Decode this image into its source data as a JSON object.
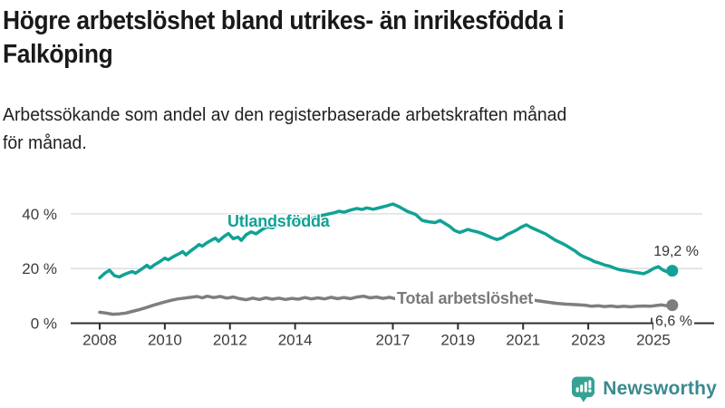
{
  "header": {
    "title_lines": [
      "Högre arbetslöshet bland utrikes- än inrikesfödda i",
      "Falköping"
    ],
    "subtitle_lines": [
      "Arbetssökande som andel av den registerbaserade arbetskraften månad",
      "för månad."
    ]
  },
  "chart_data": {
    "type": "line",
    "title": "Högre arbetslöshet bland utrikes- än inrikesfödda i Falköping",
    "subtitle": "Arbetssökande som andel av den registerbaserade arbetskraften månad för månad.",
    "xlabel": "",
    "ylabel": "",
    "grid": "horizontal",
    "legend_position": "inline-labels",
    "ylim": [
      0,
      46
    ],
    "x_range_years": [
      2007.1,
      2026.8
    ],
    "y_ticks": [
      {
        "value": 0,
        "label": "0 %"
      },
      {
        "value": 20,
        "label": "20 %"
      },
      {
        "value": 40,
        "label": "40 %"
      }
    ],
    "x_ticks": [
      {
        "year": 2008,
        "label": "2008"
      },
      {
        "year": 2010,
        "label": "2010"
      },
      {
        "year": 2012,
        "label": "2012"
      },
      {
        "year": 2014,
        "label": "2014"
      },
      {
        "year": 2017,
        "label": "2017"
      },
      {
        "year": 2019,
        "label": "2019"
      },
      {
        "year": 2021,
        "label": "2021"
      },
      {
        "year": 2023,
        "label": "2023"
      },
      {
        "year": 2025,
        "label": "2025"
      }
    ],
    "series": [
      {
        "id": "utlandsfodda",
        "name": "Utlandsfödda",
        "color": "#10a295",
        "end_value": 19.2,
        "end_label": "19,2 %",
        "points": [
          [
            2008.0,
            16.6
          ],
          [
            2008.15,
            18.2
          ],
          [
            2008.3,
            19.4
          ],
          [
            2008.45,
            17.4
          ],
          [
            2008.6,
            16.9
          ],
          [
            2008.75,
            17.8
          ],
          [
            2008.9,
            18.5
          ],
          [
            2009.0,
            18.9
          ],
          [
            2009.1,
            18.3
          ],
          [
            2009.3,
            19.9
          ],
          [
            2009.45,
            21.2
          ],
          [
            2009.55,
            20.2
          ],
          [
            2009.7,
            21.5
          ],
          [
            2009.85,
            22.6
          ],
          [
            2010.0,
            23.8
          ],
          [
            2010.1,
            23.2
          ],
          [
            2010.3,
            24.6
          ],
          [
            2010.45,
            25.5
          ],
          [
            2010.55,
            26.2
          ],
          [
            2010.65,
            25.0
          ],
          [
            2010.8,
            26.5
          ],
          [
            2010.95,
            27.8
          ],
          [
            2011.05,
            28.8
          ],
          [
            2011.15,
            28.2
          ],
          [
            2011.3,
            29.5
          ],
          [
            2011.45,
            30.5
          ],
          [
            2011.55,
            31.1
          ],
          [
            2011.65,
            30.0
          ],
          [
            2011.8,
            31.6
          ],
          [
            2011.95,
            32.8
          ],
          [
            2012.1,
            30.9
          ],
          [
            2012.25,
            31.5
          ],
          [
            2012.35,
            30.3
          ],
          [
            2012.5,
            32.4
          ],
          [
            2012.65,
            33.4
          ],
          [
            2012.8,
            32.7
          ],
          [
            2013.0,
            34.4
          ],
          [
            2013.15,
            35.3
          ],
          [
            2013.3,
            34.9
          ],
          [
            2013.5,
            36.1
          ],
          [
            2013.65,
            36.6
          ],
          [
            2013.8,
            36.1
          ],
          [
            2014.0,
            37.3
          ],
          [
            2014.2,
            38.1
          ],
          [
            2014.4,
            37.7
          ],
          [
            2014.6,
            38.7
          ],
          [
            2014.8,
            39.3
          ],
          [
            2015.0,
            39.9
          ],
          [
            2015.2,
            40.4
          ],
          [
            2015.35,
            41.0
          ],
          [
            2015.5,
            40.6
          ],
          [
            2015.7,
            41.4
          ],
          [
            2015.9,
            42.0
          ],
          [
            2016.05,
            41.6
          ],
          [
            2016.2,
            42.2
          ],
          [
            2016.4,
            41.7
          ],
          [
            2016.6,
            42.3
          ],
          [
            2016.8,
            42.9
          ],
          [
            2017.0,
            43.6
          ],
          [
            2017.2,
            42.6
          ],
          [
            2017.45,
            40.9
          ],
          [
            2017.7,
            39.8
          ],
          [
            2017.9,
            37.6
          ],
          [
            2018.1,
            37.1
          ],
          [
            2018.3,
            36.8
          ],
          [
            2018.45,
            37.6
          ],
          [
            2018.6,
            36.5
          ],
          [
            2018.75,
            35.4
          ],
          [
            2018.9,
            33.9
          ],
          [
            2019.05,
            33.2
          ],
          [
            2019.15,
            33.6
          ],
          [
            2019.3,
            34.3
          ],
          [
            2019.45,
            33.8
          ],
          [
            2019.6,
            33.4
          ],
          [
            2019.75,
            32.8
          ],
          [
            2019.9,
            32.0
          ],
          [
            2020.05,
            31.2
          ],
          [
            2020.2,
            30.6
          ],
          [
            2020.35,
            31.2
          ],
          [
            2020.5,
            32.4
          ],
          [
            2020.65,
            33.2
          ],
          [
            2020.8,
            34.1
          ],
          [
            2020.95,
            35.2
          ],
          [
            2021.1,
            36.0
          ],
          [
            2021.25,
            35.0
          ],
          [
            2021.4,
            34.2
          ],
          [
            2021.55,
            33.4
          ],
          [
            2021.7,
            32.6
          ],
          [
            2021.85,
            31.4
          ],
          [
            2022.0,
            30.3
          ],
          [
            2022.15,
            29.5
          ],
          [
            2022.3,
            28.6
          ],
          [
            2022.45,
            27.5
          ],
          [
            2022.6,
            26.4
          ],
          [
            2022.75,
            25.0
          ],
          [
            2022.9,
            24.1
          ],
          [
            2023.05,
            23.4
          ],
          [
            2023.2,
            22.5
          ],
          [
            2023.35,
            22.0
          ],
          [
            2023.5,
            21.3
          ],
          [
            2023.65,
            20.9
          ],
          [
            2023.8,
            20.2
          ],
          [
            2023.95,
            19.6
          ],
          [
            2024.1,
            19.3
          ],
          [
            2024.25,
            19.0
          ],
          [
            2024.4,
            18.7
          ],
          [
            2024.55,
            18.4
          ],
          [
            2024.7,
            18.1
          ],
          [
            2024.85,
            18.9
          ],
          [
            2025.0,
            20.0
          ],
          [
            2025.15,
            20.7
          ],
          [
            2025.3,
            19.4
          ],
          [
            2025.42,
            18.8
          ],
          [
            2025.58,
            19.2
          ]
        ]
      },
      {
        "id": "total",
        "name": "Total arbetslöshet",
        "color": "#7e7e7e",
        "end_value": 6.6,
        "end_label": "6,6 %",
        "points": [
          [
            2008.0,
            4.0
          ],
          [
            2008.2,
            3.7
          ],
          [
            2008.4,
            3.3
          ],
          [
            2008.6,
            3.4
          ],
          [
            2008.8,
            3.7
          ],
          [
            2009.0,
            4.3
          ],
          [
            2009.2,
            4.9
          ],
          [
            2009.4,
            5.6
          ],
          [
            2009.6,
            6.4
          ],
          [
            2009.8,
            7.1
          ],
          [
            2010.0,
            7.8
          ],
          [
            2010.2,
            8.4
          ],
          [
            2010.4,
            8.9
          ],
          [
            2010.6,
            9.2
          ],
          [
            2010.8,
            9.5
          ],
          [
            2011.0,
            9.8
          ],
          [
            2011.15,
            9.3
          ],
          [
            2011.3,
            9.9
          ],
          [
            2011.5,
            9.4
          ],
          [
            2011.7,
            9.8
          ],
          [
            2011.9,
            9.2
          ],
          [
            2012.1,
            9.6
          ],
          [
            2012.3,
            9.0
          ],
          [
            2012.5,
            8.6
          ],
          [
            2012.7,
            9.2
          ],
          [
            2012.9,
            8.7
          ],
          [
            2013.1,
            9.3
          ],
          [
            2013.3,
            8.8
          ],
          [
            2013.5,
            9.2
          ],
          [
            2013.7,
            8.7
          ],
          [
            2013.9,
            9.1
          ],
          [
            2014.1,
            8.8
          ],
          [
            2014.3,
            9.4
          ],
          [
            2014.5,
            8.9
          ],
          [
            2014.7,
            9.3
          ],
          [
            2014.9,
            8.9
          ],
          [
            2015.1,
            9.5
          ],
          [
            2015.3,
            9.0
          ],
          [
            2015.5,
            9.4
          ],
          [
            2015.7,
            9.0
          ],
          [
            2015.9,
            9.6
          ],
          [
            2016.1,
            9.9
          ],
          [
            2016.3,
            9.3
          ],
          [
            2016.5,
            9.6
          ],
          [
            2016.7,
            9.1
          ],
          [
            2016.9,
            9.5
          ],
          [
            2017.1,
            8.9
          ],
          [
            2017.4,
            9.2
          ],
          [
            2017.7,
            8.7
          ],
          [
            2018.0,
            8.9
          ],
          [
            2018.3,
            8.5
          ],
          [
            2018.6,
            8.7
          ],
          [
            2018.9,
            8.2
          ],
          [
            2019.2,
            8.0
          ],
          [
            2019.5,
            7.8
          ],
          [
            2019.8,
            8.0
          ],
          [
            2020.1,
            8.5
          ],
          [
            2020.35,
            9.3
          ],
          [
            2020.55,
            9.6
          ],
          [
            2020.8,
            9.3
          ],
          [
            2021.1,
            8.9
          ],
          [
            2021.4,
            8.3
          ],
          [
            2021.7,
            7.8
          ],
          [
            2022.0,
            7.3
          ],
          [
            2022.3,
            7.0
          ],
          [
            2022.6,
            6.8
          ],
          [
            2022.9,
            6.6
          ],
          [
            2023.1,
            6.2
          ],
          [
            2023.3,
            6.4
          ],
          [
            2023.5,
            6.1
          ],
          [
            2023.7,
            6.3
          ],
          [
            2023.9,
            6.0
          ],
          [
            2024.1,
            6.2
          ],
          [
            2024.3,
            6.0
          ],
          [
            2024.5,
            6.2
          ],
          [
            2024.7,
            6.3
          ],
          [
            2024.9,
            6.2
          ],
          [
            2025.1,
            6.5
          ],
          [
            2025.25,
            6.7
          ],
          [
            2025.4,
            6.4
          ],
          [
            2025.58,
            6.6
          ]
        ]
      }
    ],
    "colors": {
      "grid": "#dadada",
      "axis": "#2e2e2e",
      "tick_text": "#3c3c3c",
      "value_text": "#333333"
    }
  },
  "logo": {
    "name": "Newsworthy",
    "icon": "newsworthy-bubble-chart-icon",
    "icon_color": "#35a294",
    "text_color": "#3a8a8f"
  }
}
